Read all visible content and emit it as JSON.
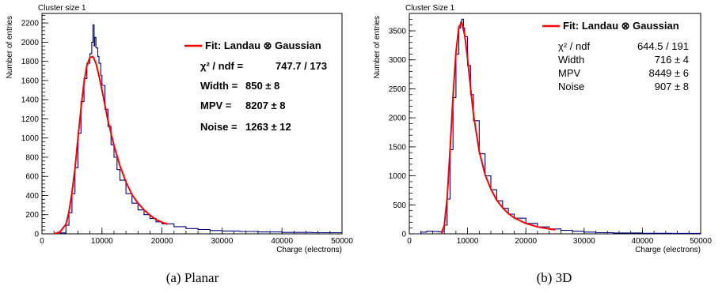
{
  "chart_data": [
    {
      "type": "line",
      "title": "Cluster size 1",
      "xlabel": "Charge (electrons)",
      "ylabel": "Number of entries",
      "xlim": [
        0,
        50000
      ],
      "ylim": [
        0,
        2300
      ],
      "xticks": [
        "0",
        "10000",
        "20000",
        "30000",
        "40000",
        "50000"
      ],
      "yticks": [
        "0",
        "200",
        "400",
        "600",
        "800",
        "1000",
        "1200",
        "1400",
        "1600",
        "1800",
        "2000",
        "2200"
      ],
      "caption": "(a) Planar",
      "legend": {
        "label": "Fit: Landau ⊗ Gaussian",
        "color": "#ff0000"
      },
      "stats": [
        {
          "name": "χ² / ndf",
          "eq": "=",
          "value": "747.7 / 173"
        },
        {
          "name": "Width",
          "eq": "=",
          "value": "850 ± 8"
        },
        {
          "name": "MPV",
          "eq": "=",
          "value": "8207 ± 8"
        },
        {
          "name": "Noise",
          "eq": "=",
          "value": "1263 ± 12"
        }
      ],
      "series": [
        {
          "kind": "histogram",
          "color": "#00007f",
          "x": [
            2000,
            3000,
            4000,
            4500,
            5000,
            5500,
            6000,
            6500,
            7000,
            7500,
            8000,
            8300,
            8500,
            8700,
            8800,
            9000,
            9300,
            9500,
            9800,
            10000,
            10500,
            11000,
            11500,
            12000,
            12500,
            13000,
            14000,
            15000,
            16000,
            17000,
            18000,
            19000,
            20000,
            22000,
            24000,
            26000,
            28000,
            30000,
            33000,
            36000,
            40000,
            45000,
            50000
          ],
          "values": [
            0,
            10,
            90,
            220,
            420,
            690,
            1050,
            1380,
            1620,
            1780,
            1880,
            2000,
            2180,
            1960,
            2050,
            1940,
            1850,
            1780,
            1650,
            1550,
            1300,
            1120,
            930,
            800,
            670,
            560,
            420,
            320,
            250,
            200,
            160,
            125,
            105,
            75,
            55,
            45,
            35,
            30,
            25,
            20,
            15,
            12,
            10
          ]
        },
        {
          "kind": "fit",
          "color": "#ff0000",
          "x": [
            2000,
            3000,
            4000,
            4500,
            5000,
            5500,
            6000,
            6500,
            7000,
            7500,
            8000,
            8500,
            9000,
            9500,
            10000,
            10500,
            11000,
            12000,
            13000,
            14000,
            15000,
            16000,
            17000,
            18000,
            19000,
            20000,
            21000
          ],
          "values": [
            0,
            20,
            100,
            230,
            430,
            680,
            1000,
            1310,
            1580,
            1760,
            1840,
            1850,
            1780,
            1650,
            1500,
            1340,
            1180,
            920,
            710,
            540,
            410,
            320,
            250,
            195,
            150,
            120,
            100
          ]
        }
      ]
    },
    {
      "type": "line",
      "title": "Cluster Size 1",
      "xlabel": "Charge (electrons)",
      "ylabel": "Number of entries",
      "xlim": [
        0,
        50000
      ],
      "ylim": [
        0,
        3800
      ],
      "xticks": [
        "0",
        "10000",
        "20000",
        "30000",
        "40000",
        "50000"
      ],
      "yticks": [
        "0",
        "500",
        "1000",
        "1500",
        "2000",
        "2500",
        "3000",
        "3500"
      ],
      "caption": "(b) 3D",
      "legend": {
        "label": "Fit: Landau ⊗ Gaussian",
        "color": "#ff0000"
      },
      "stats": [
        {
          "name": "χ² / ndf",
          "eq": "",
          "value": "644.5 / 191"
        },
        {
          "name": "Width",
          "eq": "",
          "value": "716 ± 4"
        },
        {
          "name": "MPV",
          "eq": "",
          "value": "8449 ± 6"
        },
        {
          "name": "Noise",
          "eq": "",
          "value": "907 ± 8"
        }
      ],
      "series": [
        {
          "kind": "histogram",
          "color": "#00007f",
          "x": [
            1000,
            2000,
            3000,
            4000,
            5000,
            5500,
            6000,
            6500,
            7000,
            7500,
            8000,
            8500,
            8800,
            9000,
            9300,
            9500,
            10000,
            10500,
            11000,
            12000,
            13000,
            14000,
            15000,
            16000,
            17000,
            18000,
            20000,
            22000,
            24000,
            26000,
            28000,
            30000,
            32000,
            35000,
            40000,
            45000,
            50000
          ],
          "values": [
            0,
            30,
            45,
            40,
            35,
            40,
            150,
            600,
            1450,
            2350,
            3100,
            3550,
            3650,
            3700,
            3550,
            3400,
            2900,
            2400,
            1950,
            1380,
            1000,
            760,
            570,
            440,
            340,
            270,
            180,
            120,
            85,
            60,
            45,
            30,
            20,
            15,
            10,
            8,
            5
          ]
        },
        {
          "kind": "fit",
          "color": "#ff0000",
          "x": [
            5500,
            6000,
            6500,
            7000,
            7500,
            8000,
            8500,
            9000,
            9500,
            10000,
            10500,
            11000,
            12000,
            13000,
            14000,
            15000,
            16000,
            17000,
            18000,
            20000,
            22000,
            24000,
            25000
          ],
          "values": [
            10,
            150,
            620,
            1460,
            2380,
            3130,
            3570,
            3640,
            3430,
            3020,
            2520,
            2060,
            1420,
            1020,
            770,
            580,
            450,
            350,
            275,
            180,
            120,
            85,
            70
          ]
        }
      ]
    }
  ]
}
